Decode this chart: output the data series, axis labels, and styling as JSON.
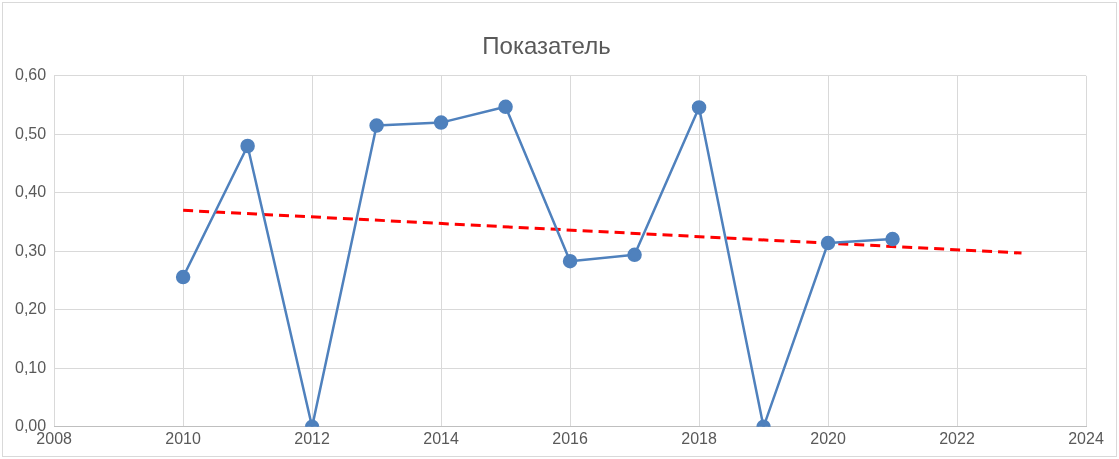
{
  "chart_data": {
    "type": "line",
    "title": "Показатель",
    "x": [
      2010,
      2011,
      2012,
      2013,
      2014,
      2015,
      2016,
      2017,
      2018,
      2019,
      2020,
      2021
    ],
    "series": [
      {
        "color": "#4f81bd",
        "marker": "circle",
        "line_style": "solid",
        "values": [
          0.256,
          0.48,
          0,
          0.515,
          0.52,
          0.547,
          0.283,
          0.294,
          0.546,
          0,
          0.314,
          0.321
        ]
      },
      {
        "type": "line",
        "color": "#ff0000",
        "marker": "none",
        "line_style": "dashed",
        "x": [
          2010,
          2023
        ],
        "values": [
          0.37,
          0.297
        ]
      }
    ],
    "xlim": [
      2008,
      2024
    ],
    "xticks": [
      2008,
      2010,
      2012,
      2014,
      2016,
      2018,
      2020,
      2022,
      2024
    ],
    "ylim": [
      0,
      0.6
    ],
    "yticks": [
      {
        "value": 0,
        "label": "0,00"
      },
      {
        "value": 0.1,
        "label": "0,10"
      },
      {
        "value": 0.2,
        "label": "0,20"
      },
      {
        "value": 0.3,
        "label": "0,30"
      },
      {
        "value": 0.4,
        "label": "0,40"
      },
      {
        "value": 0.5,
        "label": "0,50"
      },
      {
        "value": 0.6,
        "label": "0,60"
      }
    ],
    "grid": true,
    "legend": false
  }
}
